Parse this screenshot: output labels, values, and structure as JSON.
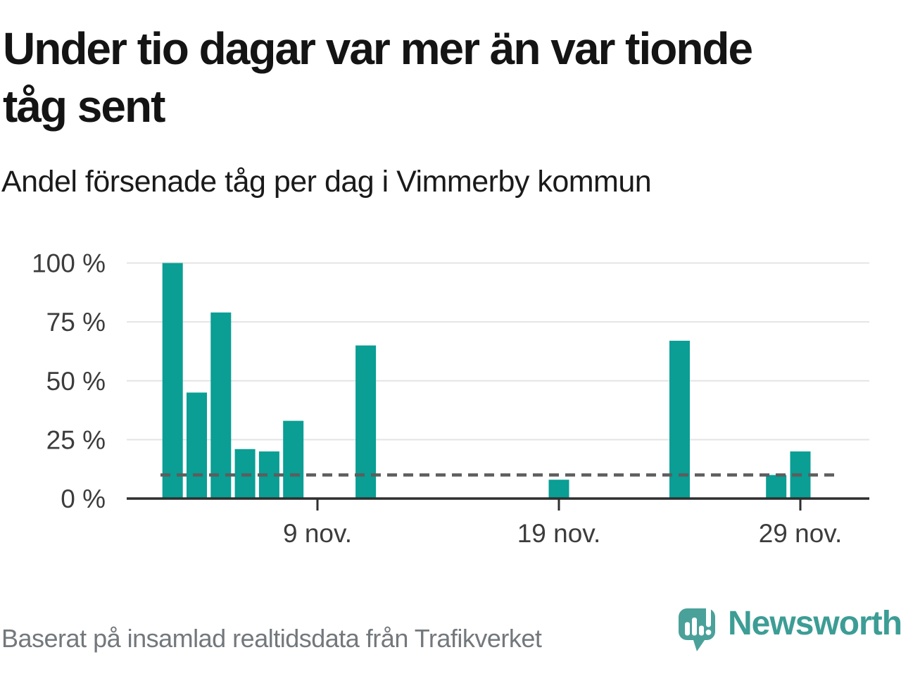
{
  "header": {
    "title": "Under tio dagar var mer än var tionde tåg sent",
    "title_lines": [
      "Under tio dagar var mer än var tionde",
      "tåg sent"
    ],
    "subtitle": "Andel försenade tåg per dag i Vimmerby kommun"
  },
  "footer": {
    "source_note": "Baserat på insamlad realtidsdata från Trafikverket",
    "brand": {
      "wordmark": "Newsworthy",
      "icon": "newsworthy-speech-bubble-bar-chart-icon"
    }
  },
  "colors": {
    "bar": "#0a9e94",
    "reference_line": "#5d5d5d",
    "axis": "#2e2e2e",
    "gridline": "#e4e4e4",
    "title_text": "#141414",
    "tick_text": "#3c3c3c",
    "footer_text": "#73787c",
    "brand_teal": "#4aa19a"
  },
  "chart_data": {
    "type": "bar",
    "title": "Under tio dagar var mer än var tionde tåg sent",
    "subtitle": "Andel försenade tåg per dag i Vimmerby kommun",
    "unit": "%",
    "categories": [
      "3 nov.",
      "4 nov.",
      "5 nov.",
      "6 nov.",
      "7 nov.",
      "8 nov.",
      "11 nov.",
      "19 nov.",
      "24 nov.",
      "28 nov.",
      "29 nov."
    ],
    "days": [
      3,
      4,
      5,
      6,
      7,
      8,
      11,
      19,
      24,
      28,
      29
    ],
    "values": [
      100,
      45,
      79,
      21,
      20,
      33,
      65,
      8,
      67,
      10,
      20
    ],
    "bar_color": "#0a9e94",
    "ylim": [
      0,
      100
    ],
    "ytick_values": [
      0,
      25,
      50,
      75,
      100
    ],
    "ytick_labels": [
      "0 %",
      "25 %",
      "50 %",
      "75 %",
      "100 %"
    ],
    "xticks": [
      {
        "day": 9,
        "label": "9 nov."
      },
      {
        "day": 19,
        "label": "19 nov."
      },
      {
        "day": 29,
        "label": "29 nov."
      }
    ],
    "reference_line": {
      "value": 10,
      "style": "dashed"
    },
    "grid": true,
    "legend_position": "none"
  }
}
